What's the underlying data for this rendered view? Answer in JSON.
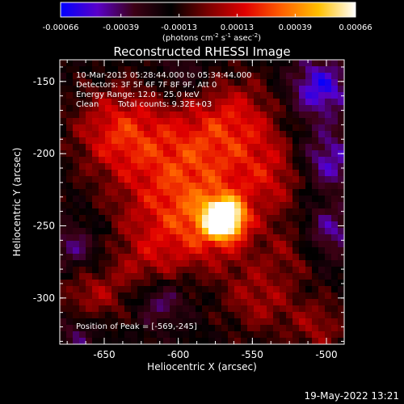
{
  "colorbar": {
    "ticks": [
      "-0.00066",
      "-0.00039",
      "-0.00013",
      "0.00013",
      "0.00039",
      "0.00066"
    ],
    "tick_values": [
      -0.00066,
      -0.00039,
      -0.00013,
      0.00013,
      0.00039,
      0.00066
    ],
    "unit_prefix": "(photons cm",
    "unit_exp1": "-2",
    "unit_mid": " s",
    "unit_exp2": "-1",
    "unit_mid2": " asec",
    "unit_exp3": "-2",
    "unit_suffix": ")",
    "colors": [
      "#0000ff",
      "#5a00c8",
      "#3c0014",
      "#000000",
      "#7a0000",
      "#e00000",
      "#ff6000",
      "#ffc000",
      "#ffffff"
    ]
  },
  "chart_data": {
    "type": "heatmap",
    "title": "Reconstructed RHESSI Image",
    "xlabel": "Heliocentric X (arcsec)",
    "ylabel": "Heliocentric Y (arcsec)",
    "xlim": [
      -680,
      -488
    ],
    "ylim": [
      -332,
      -135
    ],
    "xticks": [
      -650,
      -600,
      -550,
      -500
    ],
    "yticks": [
      -150,
      -200,
      -250,
      -300
    ],
    "xtick_labels": [
      "-650",
      "-600",
      "-550",
      "-500"
    ],
    "ytick_labels": [
      "-150",
      "-200",
      "-250",
      "-300"
    ],
    "peak": {
      "x": -569,
      "y": -245
    },
    "annotations": {
      "time_range": "10-Mar-2015 05:28:44.000 to 05:34:44.000",
      "detectors": "Detectors: 3F 5F 6F 7F 8F 9F, Att 0",
      "energy": "Energy Range: 12.0 - 25.0 keV",
      "method": "Clean",
      "counts": "Total counts: 9.32E+03",
      "peak_label": "Position of Peak = [-569,-245]"
    }
  },
  "footer": {
    "timestamp": "19-May-2022 13:21"
  }
}
